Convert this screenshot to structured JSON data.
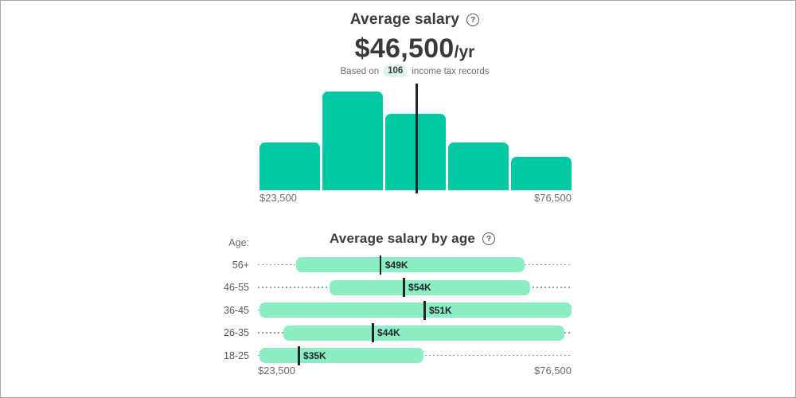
{
  "colors": {
    "teal_bar": "#00c8a2",
    "mint_bar": "#8bedc2",
    "pill_bg": "#dcf5eb",
    "ink": "#393a3d",
    "gray_text": "#6b6c72",
    "marker": "#23252b",
    "dotted_line": "#9b9b9b",
    "frame_border": "#a6a6a6"
  },
  "ui": {
    "help_icon_glyph": "?",
    "age_axis_label": "Age:"
  },
  "chart_data": [
    {
      "type": "bar",
      "title": "Average salary",
      "average_display": "$46,500",
      "average_suffix": "/yr",
      "subtitle": {
        "prefix": "Based on",
        "count": "106",
        "suffix": "income tax records"
      },
      "x_axis": {
        "min": 23500,
        "max": 76500,
        "min_label": "$23,500",
        "max_label": "$76,500"
      },
      "bins": 5,
      "bars_height_pct": [
        48.8,
        100,
        77.2,
        48.8,
        34.1
      ],
      "average_value": 46500,
      "average_marker_pct": 50.0,
      "legend": "none",
      "grid": "off"
    },
    {
      "type": "horizontal_range_bar",
      "title": "Average salary by age",
      "x_axis": {
        "min": 23500,
        "max": 76500,
        "min_label": "$23,500",
        "max_label": "$76,500"
      },
      "categories": [
        "56+",
        "46-55",
        "36-45",
        "26-35",
        "18-25"
      ],
      "values": [
        49000,
        54000,
        51000,
        44000,
        35000
      ],
      "value_labels": [
        "$49K",
        "$54K",
        "$51K",
        "$44K",
        "$35K"
      ],
      "rows": [
        {
          "category": "56+",
          "avg_value": 49000,
          "value_label": "$49K",
          "bar_start_pct": 12.2,
          "bar_end_pct": 85.0,
          "marker_pct": 38.8
        },
        {
          "category": "46-55",
          "avg_value": 54000,
          "value_label": "$54K",
          "bar_start_pct": 22.8,
          "bar_end_pct": 86.8,
          "marker_pct": 46.2
        },
        {
          "category": "36-45",
          "avg_value": 51000,
          "value_label": "$51K",
          "bar_start_pct": 0.5,
          "bar_end_pct": 100.0,
          "marker_pct": 52.8
        },
        {
          "category": "26-35",
          "avg_value": 44000,
          "value_label": "$44K",
          "bar_start_pct": 8.1,
          "bar_end_pct": 97.7,
          "marker_pct": 36.3
        },
        {
          "category": "18-25",
          "avg_value": 35000,
          "value_label": "$35K",
          "bar_start_pct": 0.5,
          "bar_end_pct": 52.8,
          "marker_pct": 12.7
        }
      ],
      "legend": "none",
      "grid": "off"
    }
  ]
}
